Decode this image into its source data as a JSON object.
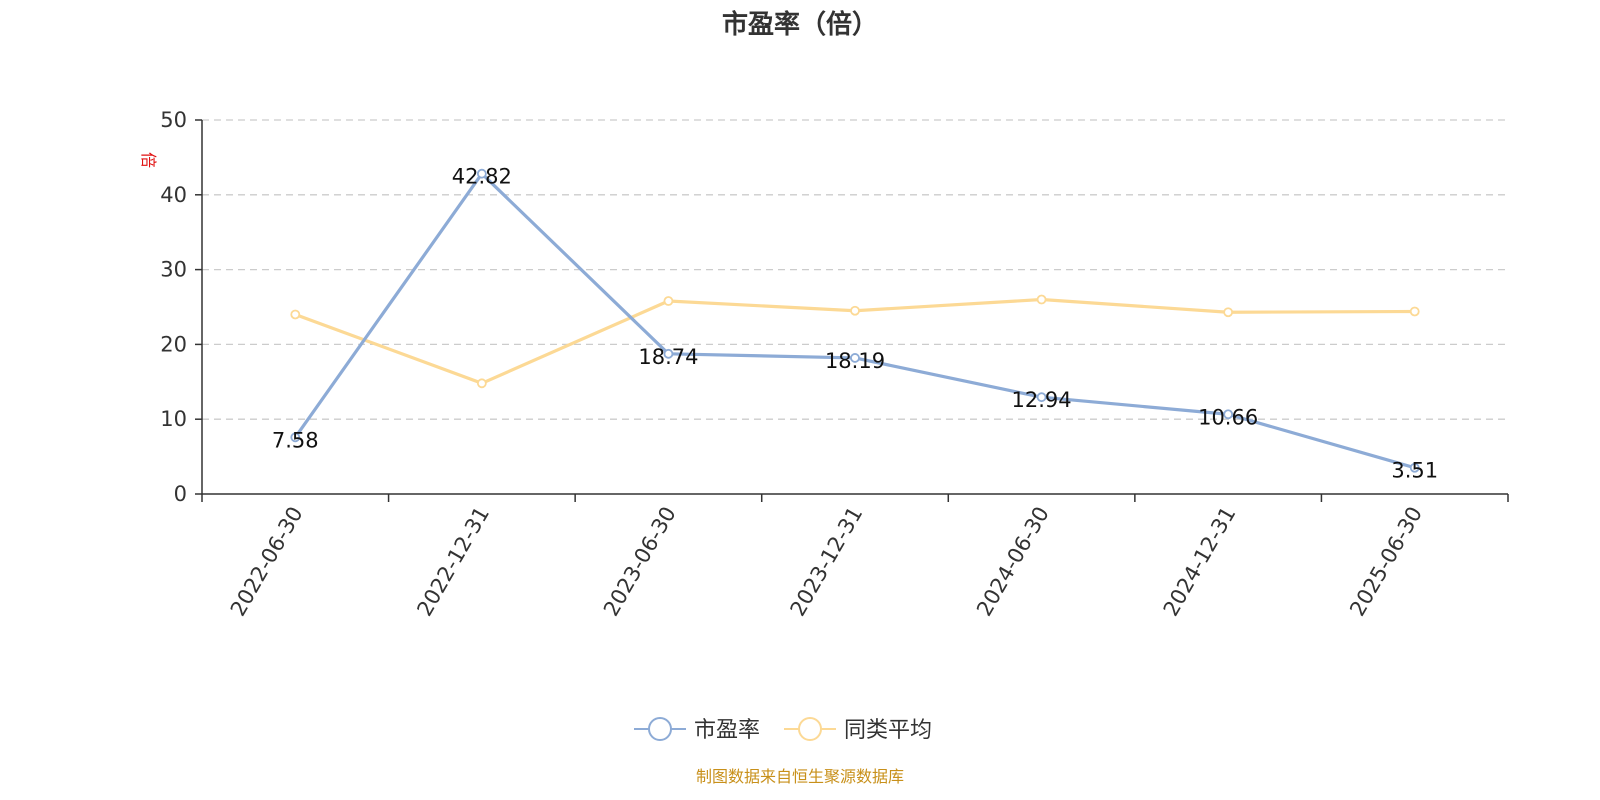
{
  "chart_data": {
    "type": "line",
    "title": "市盈率（倍）",
    "ylabel": "倍",
    "categories": [
      "2022-06-30",
      "2022-12-31",
      "2023-06-30",
      "2023-12-31",
      "2024-06-30",
      "2024-12-31",
      "2025-06-30"
    ],
    "ylim": [
      0,
      50
    ],
    "yticks": [
      0,
      10,
      20,
      30,
      40,
      50
    ],
    "grid": true,
    "legend_position": "bottom-center",
    "series": [
      {
        "name": "市盈率",
        "color": "#8dabd6",
        "values": [
          7.58,
          42.82,
          18.74,
          18.19,
          12.94,
          10.66,
          3.51
        ],
        "labels": [
          "7.58",
          "42.82",
          "18.74",
          "18.19",
          "12.94",
          "10.66",
          "3.51"
        ]
      },
      {
        "name": "同类平均",
        "color": "#fcd995",
        "values": [
          24.0,
          14.8,
          25.8,
          24.5,
          26.0,
          24.3,
          24.4
        ]
      }
    ],
    "source": "制图数据来自恒生聚源数据库"
  }
}
